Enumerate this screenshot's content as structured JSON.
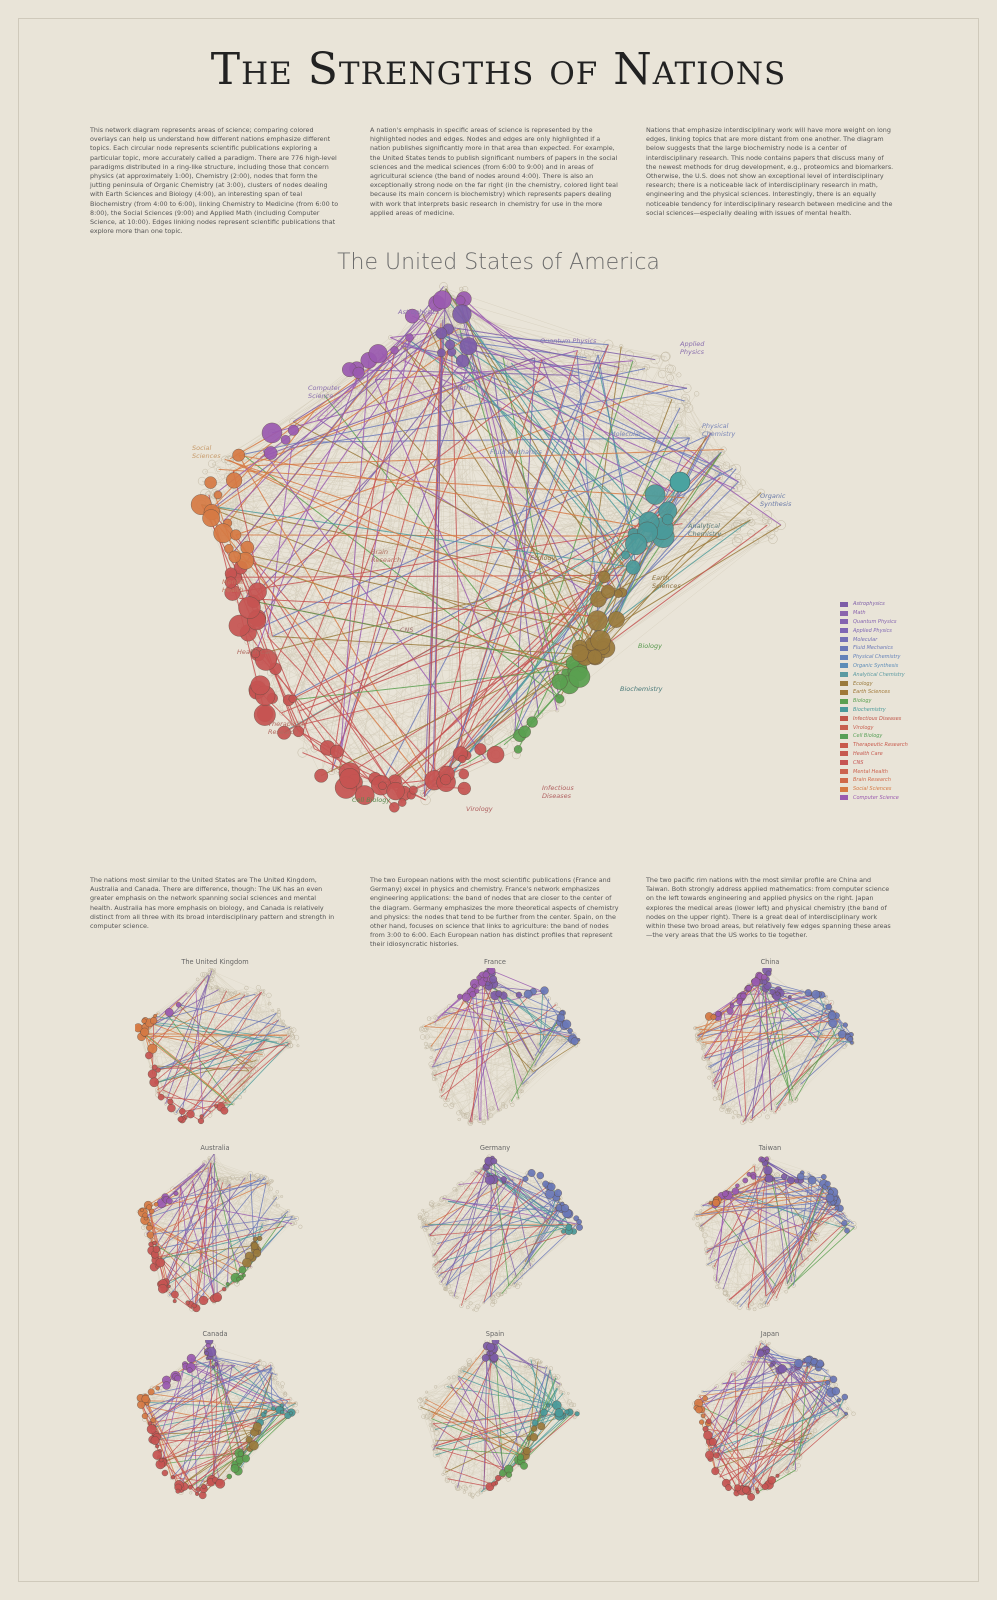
{
  "title": "The Strengths of Nations",
  "intro": [
    "This network diagram represents areas of science; comparing colored overlays can help us understand how different nations emphasize different topics. Each circular node represents scientific publications exploring a particular topic, more accurately called a paradigm. There are 776 high-level paradigms distributed in a ring-like structure, including those that concern physics (at approximately 1:00), Chemistry (2:00), nodes that form the jutting peninsula of Organic Chemistry (at 3:00), clusters of nodes dealing with Earth Sciences and Biology (4:00), an interesting span of teal Biochemistry (from 4:00 to 6:00), linking Chemistry to Medicine (from 6:00 to 8:00), the Social Sciences (9:00) and Applied Math (including Computer Science, at 10:00). Edges linking nodes represent scientific publications that explore more than one topic.",
    "A nation's emphasis in specific areas of science is represented by the highlighted nodes and edges. Nodes and edges are only highlighted if a nation publishes significantly more in that area than expected. For example, the United States tends to publish significant numbers of papers in the social sciences and the medical sciences (from 6:00 to 9:00) and in areas of agricultural science (the band of nodes around 4:00). There is also an exceptionally strong node on the far right (in the chemistry, colored light teal because its main concern is biochemistry) which represents papers dealing with work that interprets basic research in chemistry for use in the more applied areas of medicine.",
    "Nations that emphasize interdisciplinary work will have more weight on long edges, linking topics that are more distant from one another. The diagram below suggests that the large biochemistry node is a center of interdisciplinary research. This node contains papers that discuss many of the newest methods for drug development, e.g., proteomics and biomarkers. Otherwise, the U.S. does not show an exceptional level of interdisciplinary research; there is a noticeable lack of interdisciplinary research in math, engineering and the physical sciences. Interestingly, there is an equally noticeable tendency for interdisciplinary research between medicine and the social sciences—especially dealing with issues of mental health."
  ],
  "main_title": "The United States of America",
  "area_labels": [
    {
      "text": "Astrophysics",
      "color": "#8a6fae"
    },
    {
      "text": "Quantum Physics",
      "color": "#8a6fae"
    },
    {
      "text": "Applied Physics",
      "color": "#8a6fae"
    },
    {
      "text": "Computer Science",
      "color": "#8a6fae"
    },
    {
      "text": "Math",
      "color": "#8a6fae"
    },
    {
      "text": "Molecular",
      "color": "#7a86b8"
    },
    {
      "text": "Physical Chemistry",
      "color": "#7a86b8"
    },
    {
      "text": "Fluid Mechanics",
      "color": "#7a86b8"
    },
    {
      "text": "Social Sciences",
      "color": "#c79a6a"
    },
    {
      "text": "Organic Synthesis",
      "color": "#6a7aa8"
    },
    {
      "text": "Analytical Chemistry",
      "color": "#5a7a7a"
    },
    {
      "text": "Brain Research",
      "color": "#b07060"
    },
    {
      "text": "Ecology",
      "color": "#8a7040"
    },
    {
      "text": "Earth Sciences",
      "color": "#8a7040"
    },
    {
      "text": "Mental Health",
      "color": "#c07860"
    },
    {
      "text": "CNS",
      "color": "#a07070"
    },
    {
      "text": "Biology",
      "color": "#5a9a50"
    },
    {
      "text": "Health Care",
      "color": "#b06a60"
    },
    {
      "text": "Biochemistry",
      "color": "#4a7a7a"
    },
    {
      "text": "Therapeutic Research",
      "color": "#b06a60"
    },
    {
      "text": "Cell Biology",
      "color": "#5a8a50"
    },
    {
      "text": "Infectious Diseases",
      "color": "#b06060"
    },
    {
      "text": "Virology",
      "color": "#b06060"
    }
  ],
  "legend": [
    {
      "label": "Astrophysics",
      "color": "#7d5da8"
    },
    {
      "label": "Math",
      "color": "#8a64ad"
    },
    {
      "label": "Quantum Physics",
      "color": "#8464b0"
    },
    {
      "label": "Applied Physics",
      "color": "#7e66b4"
    },
    {
      "label": "Molecular",
      "color": "#7470b6"
    },
    {
      "label": "Fluid Mechanics",
      "color": "#6a78b8"
    },
    {
      "label": "Physical Chemistry",
      "color": "#6482ba"
    },
    {
      "label": "Organic Synthesis",
      "color": "#5c8cb8"
    },
    {
      "label": "Analytical Chemistry",
      "color": "#5a9aa2"
    },
    {
      "label": "Ecology",
      "color": "#9a7a3c"
    },
    {
      "label": "Earth Sciences",
      "color": "#a07838"
    },
    {
      "label": "Biology",
      "color": "#5aa050"
    },
    {
      "label": "Biochemistry",
      "color": "#4a9a9a"
    },
    {
      "label": "Infectious Diseases",
      "color": "#c0564a"
    },
    {
      "label": "Virology",
      "color": "#c86050"
    },
    {
      "label": "Cell Biology",
      "color": "#58a058"
    },
    {
      "label": "Therapeutic Research",
      "color": "#c85a4c"
    },
    {
      "label": "Health Care",
      "color": "#c65a50"
    },
    {
      "label": "CNS",
      "color": "#c65452"
    },
    {
      "label": "Mental Health",
      "color": "#cc6450"
    },
    {
      "label": "Brain Research",
      "color": "#d06a4a"
    },
    {
      "label": "Social Sciences",
      "color": "#d67a44"
    },
    {
      "label": "Computer Science",
      "color": "#9a5ab0"
    }
  ],
  "mid_text": [
    "The nations most similar to the United States are The United Kingdom, Australia and Canada. There are difference, though: The UK has an even greater emphasis on the network spanning social sciences and mental health. Australia has more emphasis on biology, and Canada is relatively distinct from all three with its broad interdisciplinary pattern and strength in computer science.",
    "The two European nations with the most scientific publications (France and Germany) excel in physics and chemistry. France's network emphasizes engineering applications: the band of nodes that are closer to the center of the diagram. Germany emphasizes the more theoretical aspects of chemistry and physics: the nodes that tend to be further from the center. Spain, on the other hand, focuses on science that links to agriculture: the band of nodes from 3:00 to 6:00. Each European nation has distinct profiles that represent their idiosyncratic histories.",
    "The two pacific rim nations with the most similar profile are China and Taiwan. Both strongly address applied mathematics: from computer science on the left towards engineering and applied physics on the right. Japan explores the medical areas (lower left) and physical chemistry (the band of nodes on the upper right). There is a great deal of interdisciplinary work within these two broad areas, but relatively few edges spanning these areas—the very areas that the US works to tie together."
  ],
  "nations": [
    {
      "name": "The United Kingdom"
    },
    {
      "name": "France"
    },
    {
      "name": "China"
    },
    {
      "name": "Australia"
    },
    {
      "name": "Germany"
    },
    {
      "name": "Taiwan"
    },
    {
      "name": "Canada"
    },
    {
      "name": "Spain"
    },
    {
      "name": "Japan"
    }
  ]
}
